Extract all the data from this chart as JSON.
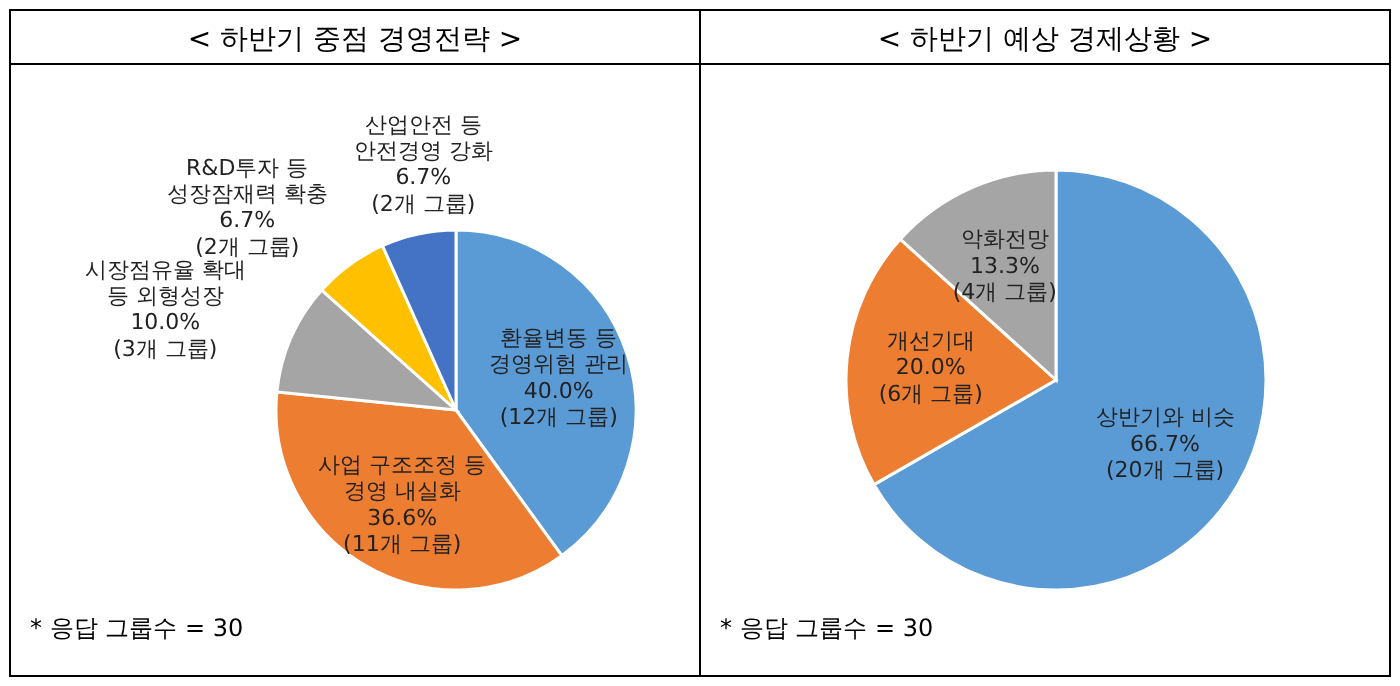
{
  "chart_data": [
    {
      "type": "pie",
      "title": "< 하반기 중점 경영전략 >",
      "categories": [
        "환율변동 등\n경영위험 관리",
        "사업 구조조정 등\n경영 내실화",
        "시장점유율 확대\n등 외형성장",
        "R&D투자 등\n성장잠재력 확충",
        "산업안전 등\n안전경영 강화"
      ],
      "values": [
        40.0,
        36.6,
        10.0,
        6.7,
        6.7
      ],
      "colors": [
        "#5b9bd5",
        "#ed7d31",
        "#a5a5a5",
        "#ffc000",
        "#4472c4"
      ],
      "value_labels": [
        "40.0%\n(12개 그룹)",
        "36.6%\n(11개 그룹)",
        "10.0%\n(3개 그룹)",
        "6.7%\n(2개 그룹)",
        "6.7%\n(2개 그룹)"
      ],
      "annotations": [
        "* 응답 그룹수 = 30"
      ]
    },
    {
      "type": "pie",
      "title": "< 하반기 예상 경제상황 >",
      "categories": [
        "상반기와 비슷",
        "개선기대",
        "악화전망"
      ],
      "values": [
        66.7,
        20.0,
        13.3
      ],
      "colors": [
        "#5b9bd5",
        "#ed7d31",
        "#a5a5a5"
      ],
      "value_labels": [
        "66.7%\n(20개 그룹)",
        "20.0%\n(6개 그룹)",
        "13.3%\n(4개 그룹)"
      ],
      "annotations": [
        "* 응답 그룹수 = 30"
      ]
    }
  ]
}
